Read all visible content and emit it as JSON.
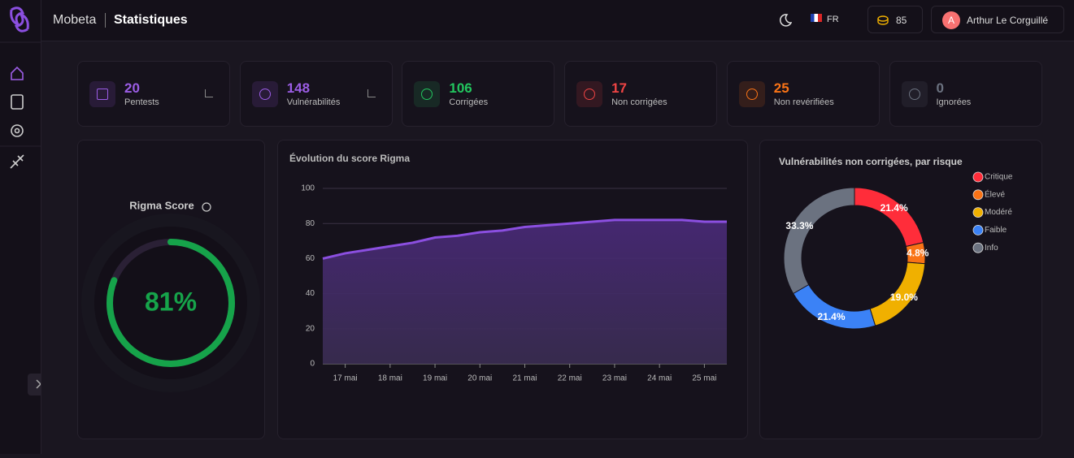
{
  "header": {
    "brand": "Mobeta",
    "page_title": "Statistiques",
    "language": "FR",
    "credits": 85,
    "user_initial": "A",
    "user_name": "Arthur Le Corguillé"
  },
  "stats": [
    {
      "value": 20,
      "label": "Pentests",
      "color": "#9b5de5"
    },
    {
      "value": 148,
      "label": "Vulnérabilités",
      "color": "#9b5de5"
    },
    {
      "value": 106,
      "label": "Corrigées",
      "color": "#22c55e"
    },
    {
      "value": 17,
      "label": "Non corrigées",
      "color": "#ef4444"
    },
    {
      "value": 25,
      "label": "Non revérifiées",
      "color": "#f97316"
    },
    {
      "value": 0,
      "label": "Ignorées",
      "color": "#6b7280"
    }
  ],
  "gauge": {
    "title": "Rigma Score",
    "value": 81,
    "value_label": "81%",
    "color": "#16a34a"
  },
  "chart_data": [
    {
      "type": "line",
      "title": "Évolution du score Rigma",
      "categories": [
        null,
        "17 mai",
        null,
        "18 mai",
        null,
        "19 mai",
        null,
        "20 mai",
        null,
        "21 mai",
        null,
        "22 mai",
        null,
        "23 mai",
        null,
        "24 mai",
        null,
        "25 mai",
        null
      ],
      "values": [
        60,
        63,
        65,
        67,
        69,
        72,
        73,
        75,
        76,
        78,
        79,
        80,
        81,
        82,
        82,
        82,
        82,
        81,
        81
      ],
      "color": "#8b4fe0",
      "ylim": [
        0,
        100
      ],
      "yticks": [
        0,
        20,
        40,
        60,
        80,
        100
      ],
      "grid": true
    },
    {
      "type": "pie",
      "title": "Vulnérabilités non corrigées, par risque",
      "categories": [
        "Critique",
        "Élevé",
        "Modéré",
        "Faible",
        "Info"
      ],
      "values": [
        21.4,
        4.8,
        19.0,
        21.4,
        33.3
      ],
      "value_labels": [
        "21.4%",
        "4.8%",
        "19.0%",
        "21.4%",
        "33.3%"
      ],
      "colors": [
        "#ff2d3a",
        "#f97316",
        "#f0b000",
        "#3b82f6",
        "#6b7280"
      ],
      "donut": true,
      "legend": "right"
    }
  ]
}
